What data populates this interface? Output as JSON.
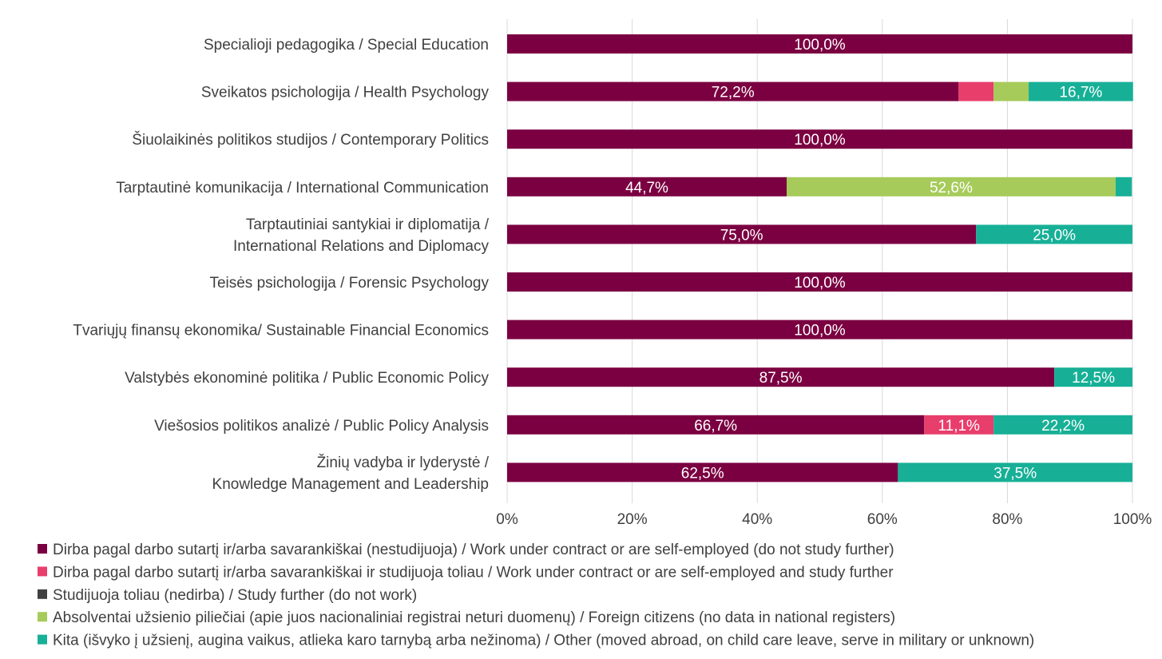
{
  "chart_data": {
    "type": "bar",
    "orientation": "horizontal",
    "stacked": "percent",
    "categories": [
      [
        "Specialioji pedagogika / Special Education"
      ],
      [
        "Sveikatos psichologija / Health Psychology"
      ],
      [
        "Šiuolaikinės politikos studijos / Contemporary Politics"
      ],
      [
        "Tarptautinė komunikacija / International Communication"
      ],
      [
        "Tarptautiniai santykiai ir diplomatija /",
        "International Relations and Diplomacy"
      ],
      [
        "Teisės psichologija / Forensic Psychology"
      ],
      [
        "Tvariųjų finansų ekonomika/ Sustainable Financial Economics"
      ],
      [
        "Valstybės ekonominė politika / Public Economic Policy"
      ],
      [
        "Viešosios politikos analizė / Public Policy Analysis"
      ],
      [
        "Žinių vadyba ir lyderystė /",
        "Knowledge Management and Leadership"
      ]
    ],
    "series": [
      {
        "name": "Dirba pagal darbo sutartį ir/arba savarankiškai (nestudijuoja) / Work under contract or are self-employed (do not study further)",
        "color": "#7b0041",
        "values": [
          100.0,
          72.2,
          100.0,
          44.7,
          75.0,
          100.0,
          100.0,
          87.5,
          66.7,
          62.5
        ],
        "labels": [
          "100,0%",
          "72,2%",
          "100,0%",
          "44,7%",
          "75,0%",
          "100,0%",
          "100,0%",
          "87,5%",
          "66,7%",
          "62,5%"
        ]
      },
      {
        "name": "Dirba pagal darbo sutartį ir/arba savarankiškai  ir studijuoja toliau / Work under contract or are self-employed and study further",
        "color": "#e83e6c",
        "values": [
          0,
          5.6,
          0,
          0,
          0,
          0,
          0,
          0,
          11.1,
          0
        ],
        "labels": [
          "",
          "",
          "",
          "",
          "",
          "",
          "",
          "",
          "11,1%",
          ""
        ]
      },
      {
        "name": "Studijuoja toliau (nedirba) / Study further (do not work)",
        "color": "#404040",
        "values": [
          0,
          0,
          0,
          0,
          0,
          0,
          0,
          0,
          0,
          0
        ],
        "labels": [
          "",
          "",
          "",
          "",
          "",
          "",
          "",
          "",
          "",
          ""
        ]
      },
      {
        "name": "Absolventai užsienio piliečiai (apie juos nacionaliniai registrai neturi duomenų) / Foreign citizens (no data in national registers)",
        "color": "#a6cb5a",
        "values": [
          0,
          5.6,
          0,
          52.6,
          0,
          0,
          0,
          0,
          0,
          0
        ],
        "labels": [
          "",
          "",
          "",
          "52,6%",
          "",
          "",
          "",
          "",
          "",
          ""
        ]
      },
      {
        "name": "Kita (išvyko į užsienį, augina vaikus, atlieka karo tarnybą arba nežinoma) / Other (moved abroad, on child care leave, serve in military or unknown)",
        "color": "#17b097",
        "values": [
          0,
          16.7,
          0,
          2.6,
          25.0,
          0,
          0,
          12.5,
          22.2,
          37.5
        ],
        "labels": [
          "",
          "16,7%",
          "",
          "",
          "25,0%",
          "",
          "",
          "12,5%",
          "22,2%",
          "37,5%"
        ]
      }
    ],
    "xlim": [
      0,
      100
    ],
    "xticks": [
      0,
      20,
      40,
      60,
      80,
      100
    ],
    "xtick_labels": [
      "0%",
      "20%",
      "40%",
      "60%",
      "80%",
      "100%"
    ],
    "grid": true,
    "legend_position": "bottom",
    "gridline_color": "#d9d9d9",
    "text_color": "#404040"
  }
}
